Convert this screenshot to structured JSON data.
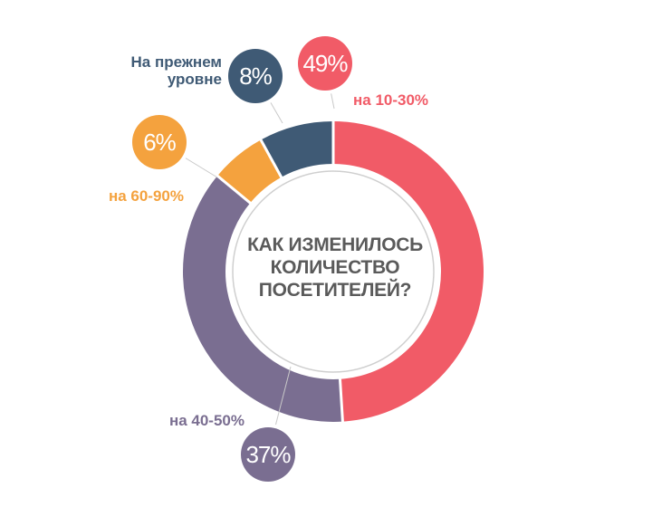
{
  "chart_data": {
    "type": "pie",
    "title": [
      "КАК ИЗМЕНИЛОСЬ",
      "КОЛИЧЕСТВО",
      "ПОСЕТИТЕЛЕЙ?"
    ],
    "slices": [
      {
        "label": "на 10-30%",
        "value": 49,
        "value_label": "49%",
        "color": "#f15b67"
      },
      {
        "label": "на 40-50%",
        "value": 37,
        "value_label": "37%",
        "color": "#7a6e91"
      },
      {
        "label": "на 60-90%",
        "value": 6,
        "value_label": "6%",
        "color": "#f4a23e"
      },
      {
        "label": "На прежнем уровне",
        "label_lines": [
          "На прежнем",
          "уровне"
        ],
        "value": 8,
        "value_label": "8%",
        "color": "#3f5a75"
      }
    ]
  }
}
